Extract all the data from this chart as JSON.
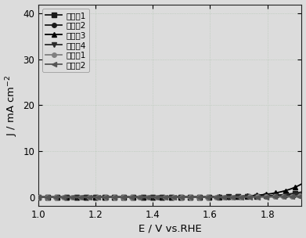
{
  "xlabel": "E / V vs.RHE",
  "ylabel": "J / mA cm$^{-2}$",
  "xlim": [
    1.0,
    1.92
  ],
  "ylim": [
    -2,
    42
  ],
  "xticks": [
    1.0,
    1.2,
    1.4,
    1.6,
    1.8
  ],
  "yticks": [
    0,
    10,
    20,
    30,
    40
  ],
  "background_color": "#dcdcdc",
  "grid_color": "#b0c4b0",
  "legend_labels": [
    "实施例1",
    "实施例2",
    "实施例3",
    "实施例4",
    "对比例1",
    "对比例2"
  ],
  "colors": [
    "#1a1a1a",
    "#1a1a1a",
    "#000000",
    "#2a2a2a",
    "#808080",
    "#555555"
  ],
  "markers": [
    "s",
    "o",
    "^",
    "v",
    "o",
    "<"
  ],
  "onsets": [
    1.545,
    1.548,
    1.53,
    1.555,
    1.572,
    1.598
  ],
  "alphas": [
    11.0,
    10.5,
    12.5,
    10.0,
    9.0,
    8.0
  ],
  "scales": [
    0.018,
    0.016,
    0.022,
    0.014,
    0.01,
    0.008
  ],
  "marker_sizes": [
    4,
    4,
    4,
    4,
    4,
    4
  ],
  "marker_every": [
    18,
    18,
    18,
    18,
    16,
    16
  ]
}
